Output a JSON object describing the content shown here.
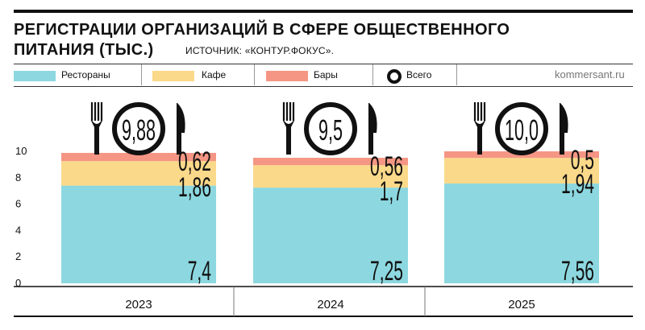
{
  "title_line1": "РЕГИСТРАЦИИ ОРГАНИЗАЦИЙ В СФЕРЕ ОБЩЕСТВЕННОГО",
  "title_line2": "ПИТАНИЯ (ТЫС.)",
  "source": "ИСТОЧНИК: «КОНТУР.ФОКУС».",
  "credit": "kommersant.ru",
  "legend": {
    "restaurants": "Рестораны",
    "cafe": "Кафе",
    "bars": "Бары",
    "total": "Всего"
  },
  "colors": {
    "restaurants": "#8dd8e0",
    "cafe": "#fbd98a",
    "bars": "#f59684",
    "ink": "#111111"
  },
  "chart_data": {
    "type": "bar",
    "stacked": true,
    "categories": [
      "2023",
      "2024",
      "2025"
    ],
    "series": [
      {
        "name": "Рестораны",
        "values": [
          7.4,
          7.25,
          7.56
        ],
        "labels": [
          "7,4",
          "7,25",
          "7,56"
        ]
      },
      {
        "name": "Кафе",
        "values": [
          1.86,
          1.7,
          1.94
        ],
        "labels": [
          "1,86",
          "1,7",
          "1,94"
        ]
      },
      {
        "name": "Бары",
        "values": [
          0.62,
          0.56,
          0.5
        ],
        "labels": [
          "0,62",
          "0,56",
          "0,5"
        ]
      }
    ],
    "totals": {
      "name": "Всего",
      "values": [
        9.88,
        9.5,
        10.0
      ],
      "labels": [
        "9,88",
        "9,5",
        "10,0"
      ]
    },
    "yticks": [
      "0",
      "2",
      "4",
      "6",
      "8",
      "10"
    ],
    "ylim": [
      0,
      10
    ],
    "legend_position": "top",
    "grid": false
  }
}
